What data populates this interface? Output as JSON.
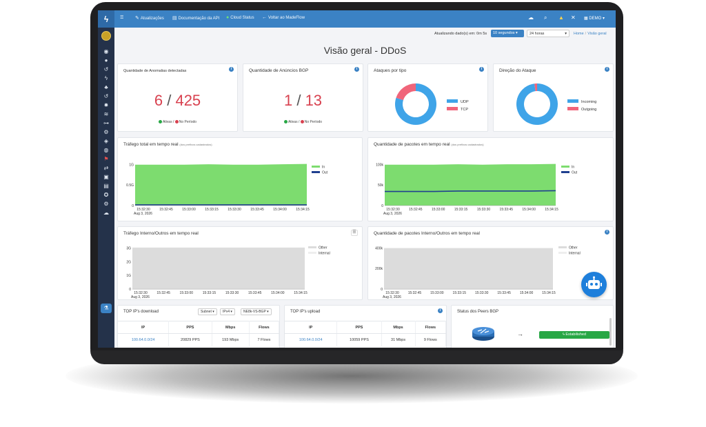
{
  "nav": {
    "items": [
      {
        "icon": "wrench-icon",
        "label": "Atualizações"
      },
      {
        "icon": "document-icon",
        "label": "Documentação da API"
      },
      {
        "icon": "status-dot-icon",
        "label": "Cloud Status"
      },
      {
        "icon": "arrow-left-icon",
        "label": "Voltar ao MadeFlow"
      }
    ],
    "user": "DEMO"
  },
  "header": {
    "update_label": "Atualizando dado(s) em: 0m 5s",
    "refresh_interval": "10 segundos",
    "time_range": "24 horas",
    "breadcrumb": [
      "Home",
      "Visão geral"
    ],
    "title": "Visão geral - DDoS"
  },
  "anomalies": {
    "title": "Quantidade de Anomalias detectadas",
    "active": "6",
    "period": "425",
    "legend_active": "Ativas /",
    "legend_period": "No Período"
  },
  "bgp_ann": {
    "title": "Quantidade de Anúncios BGP",
    "active": "1",
    "period": "13",
    "legend_active": "Ativas /",
    "legend_period": "No Período"
  },
  "attacks_by_type": {
    "title": "Ataques por tipo",
    "chart_data": {
      "type": "pie",
      "labels": [
        "UDP",
        "TCP"
      ],
      "values": [
        80,
        20
      ],
      "colors": [
        "#3fa4e8",
        "#f0657a"
      ]
    }
  },
  "attack_direction": {
    "title": "Direção do Ataque",
    "chart_data": {
      "type": "pie",
      "labels": [
        "Incoming",
        "Outgoing"
      ],
      "values": [
        98,
        2
      ],
      "colors": [
        "#3fa4e8",
        "#f0657a"
      ]
    }
  },
  "traffic_total": {
    "title": "Tráfego total em tempo real",
    "subtitle": "(dos prefixos cadastrados)",
    "chart_data": {
      "type": "area",
      "x": [
        "15:32:30",
        "15:32:45",
        "15:33:00",
        "15:33:15",
        "15:33:30",
        "15:33:45",
        "15:34:00",
        "15:34:15"
      ],
      "date_label": "Aug 3, 2026",
      "yticks": [
        "0",
        "0.5G",
        "1G"
      ],
      "ylim": [
        0,
        1.15
      ],
      "series": [
        {
          "name": "In",
          "color": "#7ddc6f",
          "values": [
            1.1,
            1.1,
            1.1,
            1.11,
            1.1,
            1.1,
            1.11,
            1.12
          ]
        },
        {
          "name": "Out",
          "color": "#1f3f8f",
          "values": [
            0.02,
            0.02,
            0.02,
            0.02,
            0.02,
            0.02,
            0.02,
            0.02
          ]
        }
      ]
    }
  },
  "packets_total": {
    "title": "Quantidade de pacotes em tempo real",
    "subtitle": "(dos prefixos cadastrados)",
    "chart_data": {
      "type": "area",
      "x": [
        "15:32:30",
        "15:32:45",
        "15:33:00",
        "15:33:15",
        "15:33:30",
        "15:33:45",
        "15:34:00",
        "15:34:15"
      ],
      "date_label": "Aug 3, 2026",
      "yticks": [
        "0",
        "50k",
        "100k"
      ],
      "ylim": [
        0,
        115
      ],
      "series": [
        {
          "name": "In",
          "color": "#7ddc6f",
          "values": [
            110,
            110,
            110,
            111,
            110,
            111,
            111,
            112
          ]
        },
        {
          "name": "Out",
          "color": "#1f3f8f",
          "values": [
            38,
            38,
            38,
            39,
            39,
            39,
            39,
            40
          ]
        }
      ]
    }
  },
  "traffic_internal": {
    "title": "Tráfego Interno/Outros em tempo real",
    "chart_data": {
      "type": "area",
      "x": [
        "15:32:30",
        "15:32:45",
        "15:33:00",
        "15:33:15",
        "15:33:30",
        "15:33:45",
        "15:34:00",
        "15:34:15"
      ],
      "date_label": "Aug 3, 2026",
      "yticks": [
        "0",
        "1G",
        "2G",
        "3G"
      ],
      "ylim": [
        0,
        3.3
      ],
      "series": [
        {
          "name": "Other",
          "color": "#dcdcdc",
          "values": [
            3.2,
            3.2,
            3.2,
            3.2,
            3.2,
            3.2,
            3.2,
            3.2
          ]
        },
        {
          "name": "Internal",
          "color": "#eeeeee",
          "values": [
            0,
            0,
            0,
            0,
            0,
            0,
            0,
            0
          ]
        }
      ]
    }
  },
  "packets_internal": {
    "title": "Quantidade de pacotes Interno/Outros em tempo real",
    "chart_data": {
      "type": "area",
      "x": [
        "15:32:30",
        "15:32:45",
        "15:33:00",
        "15:33:15",
        "15:33:30",
        "15:33:45",
        "15:34:00",
        "15:34:15"
      ],
      "date_label": "Aug 3, 2026",
      "yticks": [
        "0",
        "200k",
        "400k"
      ],
      "ylim": [
        0,
        480
      ],
      "series": [
        {
          "name": "Other",
          "color": "#dcdcdc",
          "values": [
            460,
            460,
            460,
            460,
            460,
            460,
            460,
            460
          ]
        },
        {
          "name": "Internal",
          "color": "#eeeeee",
          "values": [
            0,
            0,
            0,
            0,
            0,
            0,
            0,
            0
          ]
        }
      ]
    }
  },
  "top_download": {
    "title": "TOP IP's download",
    "filters": [
      "Subnet",
      "IPv4",
      "NE8k-VS-BGP"
    ],
    "columns": [
      "IP",
      "PPS",
      "Mbps",
      "Flows"
    ],
    "rows": [
      [
        "100.64.0.0/24",
        "20829 PPS",
        "193 Mbps",
        "7 Flows"
      ]
    ]
  },
  "top_upload": {
    "title": "TOP IP's upload",
    "columns": [
      "IP",
      "PPS",
      "Mbps",
      "Flows"
    ],
    "rows": [
      [
        "100.64.0.0/24",
        "10059 PPS",
        "31 Mbps",
        "9 Flows"
      ]
    ]
  },
  "bgp_peers": {
    "title": "Status dos Peers BGP",
    "status": "Estabilished"
  }
}
